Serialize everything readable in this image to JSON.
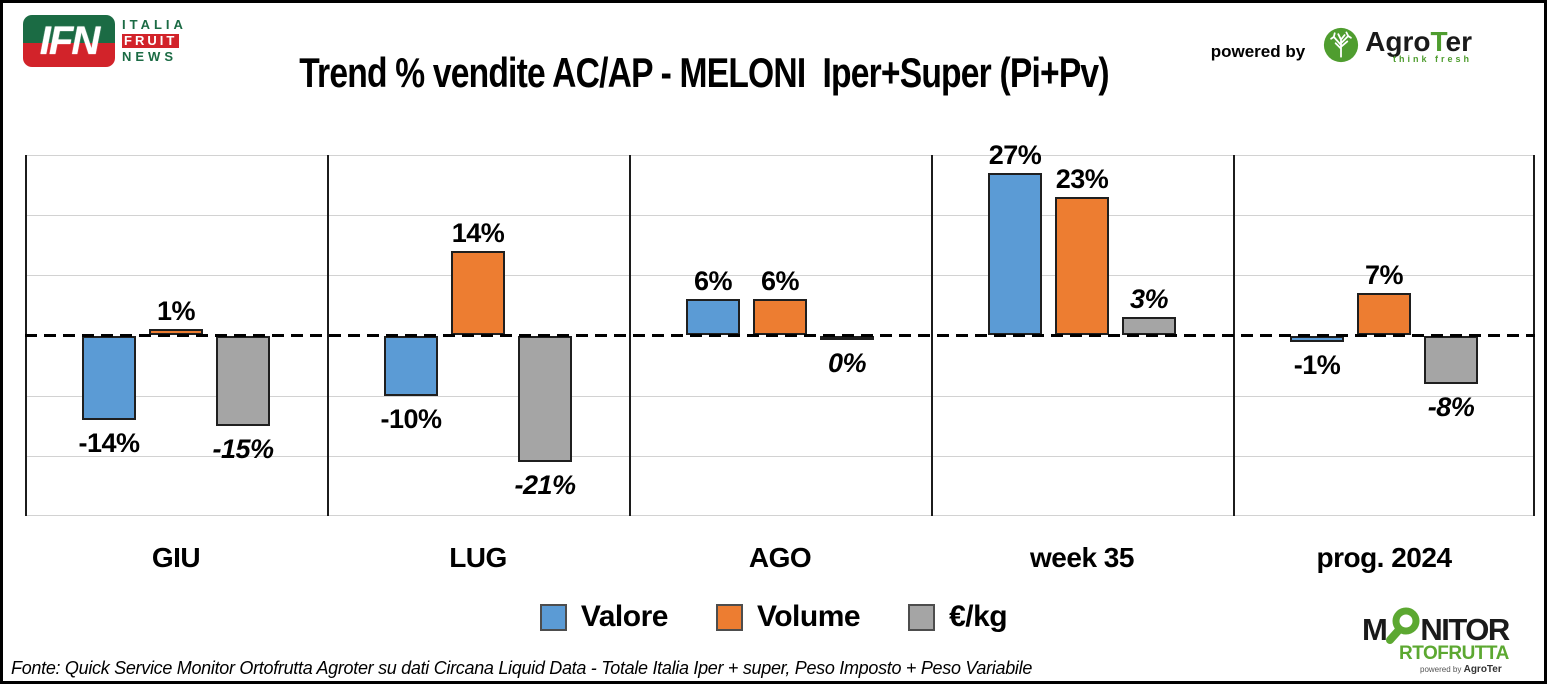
{
  "header": {
    "ifn_logo": {
      "monogram": "IFN",
      "line1": "ITALIA",
      "line2": "FRUIT",
      "line3": "NEWS"
    },
    "powered_by": "powered by",
    "agroter_logo": {
      "name_pre": "Agro",
      "name_t": "T",
      "name_post": "er",
      "tagline": "think fresh"
    }
  },
  "chart_data": {
    "type": "bar",
    "title": "Trend % vendite AC/AP - MELONI  Iper+Super (Pi+Pv)",
    "categories": [
      "GIU",
      "LUG",
      "AGO",
      "week 35",
      "prog. 2024"
    ],
    "series": [
      {
        "name": "Valore",
        "color": "#5B9BD5",
        "values": [
          -14,
          -10,
          6,
          27,
          -1
        ],
        "labels": [
          "-14%",
          "-10%",
          "6%",
          "27%",
          "-1%"
        ],
        "italic_labels": false
      },
      {
        "name": "Volume",
        "color": "#ED7D31",
        "values": [
          1,
          14,
          6,
          23,
          7
        ],
        "labels": [
          "1%",
          "14%",
          "6%",
          "23%",
          "7%"
        ],
        "italic_labels": false
      },
      {
        "name": "€/kg",
        "color": "#A5A5A5",
        "values": [
          -15,
          -21,
          0,
          3,
          -8
        ],
        "labels": [
          "-15%",
          "-21%",
          "0%",
          "3%",
          "-8%"
        ],
        "italic_labels": true
      }
    ],
    "ylim": [
      -30,
      30
    ],
    "grid_step": 10,
    "grid": true,
    "zero_line": "dashed",
    "legend_position": "bottom",
    "xlabel": "",
    "ylabel": ""
  },
  "footer": {
    "source": "Fonte: Quick Service Monitor Ortofrutta Agroter su dati Circana Liquid Data - Totale Italia Iper + super, Peso Imposto + Peso Variabile",
    "monitor_logo": {
      "line1_pre": "M",
      "line1_post": "NITOR",
      "line2": "RTOFRUTTA",
      "powered": "powered by",
      "agroter": "AgroTer"
    }
  },
  "colors": {
    "valore_blue": "#5B9BD5",
    "volume_orange": "#ED7D31",
    "eurkg_gray": "#A5A5A5",
    "ifn_green": "#1B6B44",
    "ifn_red": "#D2232A",
    "agroter_green": "#4F9D2F",
    "monitor_green": "#5CA831"
  }
}
